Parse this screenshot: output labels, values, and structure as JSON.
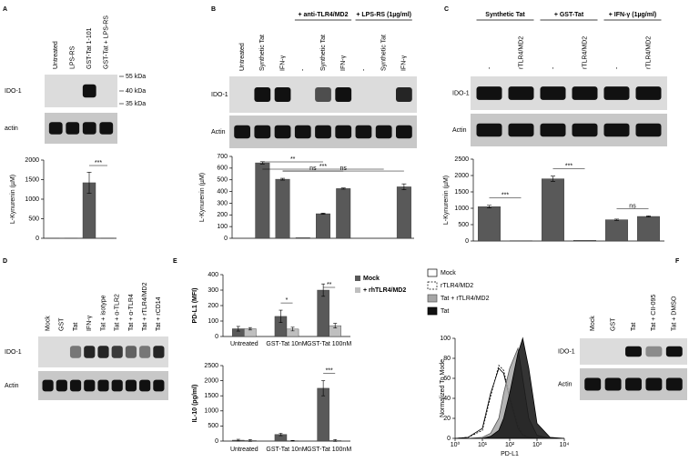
{
  "panel_labels": [
    "A",
    "B",
    "C",
    "D",
    "E",
    "F"
  ],
  "blots": [
    {
      "lanes": [
        "Untreated",
        "LPS-RS",
        "GST-Tat 1-101",
        "GST-Tat + LPS-RS"
      ],
      "rows": [
        "IDO-1",
        "actin"
      ],
      "markers": [
        "55 kDa",
        "40 kDa",
        "35 kDa"
      ]
    },
    {
      "groups": [
        "+ anti-TLR4/MD2",
        "+ LPS-RS (1µg/ml)"
      ],
      "lanes": [
        "Untreated",
        "Synthetic Tat",
        "IFN-γ",
        "-",
        "Synthetic Tat",
        "IFN-γ",
        "-",
        "Synthetic Tat",
        "IFN-γ"
      ],
      "rows": [
        "IDO-1",
        "Actin"
      ]
    },
    {
      "groups": [
        "Synthetic Tat",
        "+ GST-Tat",
        "+ IFN-γ (1µg/ml)"
      ],
      "lanes": [
        "-",
        "rTLR4/MD2",
        "-",
        "rTLR4/MD2",
        "-",
        "rTLR4/MD2"
      ],
      "rows": [
        "IDO-1",
        "Actin"
      ]
    },
    {
      "lanes": [
        "Mock",
        "GST",
        "Tat",
        "IFN-γ",
        "Tat + isotype",
        "Tat + α-TLR2",
        "Tat + α-TLR4",
        "Tat + rTLR4/MD2",
        "Tat + rCD14"
      ],
      "rows": [
        "IDO-1",
        "Actin"
      ]
    },
    {
      "lanes": [
        "Mock",
        "GST",
        "Tat",
        "Tat + CII-095",
        "Tat + DMSO"
      ],
      "rows": [
        "IDO-1",
        "Actin"
      ]
    }
  ],
  "chart_data": [
    {
      "type": "bar",
      "ylabel": "L-Kynurenin (µM)",
      "categories": [
        null,
        null,
        null,
        null
      ],
      "values": [
        5,
        5,
        1420,
        5
      ],
      "errors": [
        null,
        null,
        270,
        null
      ],
      "color": "#595959",
      "ylim": [
        0,
        2000
      ],
      "yticks": [
        0,
        500,
        1000,
        1500,
        2000
      ],
      "annotations": [
        {
          "text": "***",
          "between": [
            2,
            3
          ]
        }
      ]
    },
    {
      "type": "bar",
      "ylabel": "L-Kynurenin (µM)",
      "categories": [
        null,
        null,
        null,
        null,
        null,
        null,
        null,
        null,
        null
      ],
      "values": [
        0,
        645,
        505,
        5,
        210,
        425,
        0,
        0,
        440
      ],
      "errors": [
        null,
        10,
        8,
        null,
        5,
        5,
        null,
        null,
        25
      ],
      "color": "#595959",
      "ylim": [
        0,
        700
      ],
      "yticks": [
        0,
        100,
        200,
        300,
        400,
        500,
        600,
        700
      ],
      "annotations": [
        {
          "text": "**",
          "between": [
            1,
            4
          ]
        },
        {
          "text": "***",
          "between": [
            1,
            7
          ]
        },
        {
          "text": "ns",
          "between": [
            2,
            5
          ]
        },
        {
          "text": "ns",
          "between": [
            2,
            8
          ]
        }
      ]
    },
    {
      "type": "bar",
      "ylabel": "L-Kynurenin (µM)",
      "categories": [
        null,
        null,
        null,
        null,
        null,
        null
      ],
      "values": [
        1050,
        10,
        1900,
        20,
        650,
        750
      ],
      "errors": [
        40,
        null,
        80,
        null,
        20,
        15
      ],
      "color": "#595959",
      "ylim": [
        0,
        2500
      ],
      "yticks": [
        0,
        500,
        1000,
        1500,
        2000,
        2500
      ],
      "annotations": [
        {
          "text": "***",
          "between": [
            0,
            1
          ]
        },
        {
          "text": "***",
          "between": [
            2,
            3
          ]
        },
        {
          "text": "ns",
          "between": [
            4,
            5
          ]
        }
      ]
    },
    {
      "type": "grouped_bar",
      "ylabel": "PD-L1 (MFI)",
      "categories": [
        "Untreated",
        "GST-Tat 10nM",
        "GST-Tat 100nM"
      ],
      "series": [
        {
          "name": "Mock",
          "color": "#595959",
          "values": [
            50,
            130,
            300
          ],
          "errors": [
            15,
            40,
            40
          ]
        },
        {
          "name": "+ rhTLR4/MD2",
          "color": "#bfbfbf",
          "values": [
            50,
            48,
            70
          ],
          "errors": [
            8,
            12,
            15
          ]
        }
      ],
      "ylim": [
        0,
        400
      ],
      "yticks": [
        0,
        100,
        200,
        300,
        400
      ],
      "annotations": [
        {
          "text": "*",
          "category": 1
        },
        {
          "text": "**",
          "category": 2
        }
      ]
    },
    {
      "type": "grouped_bar",
      "ylabel": "IL-10 (pg/ml)",
      "categories": [
        "Untreated",
        "GST-Tat 10nM",
        "GST-Tat 100nM"
      ],
      "series": [
        {
          "color": "#595959",
          "values": [
            30,
            220,
            1750
          ],
          "errors": [
            30,
            40,
            250
          ]
        },
        {
          "color": "#bfbfbf",
          "values": [
            20,
            10,
            20
          ],
          "errors": [
            30,
            10,
            30
          ]
        }
      ],
      "ylim": [
        0,
        2500
      ],
      "yticks": [
        0,
        500,
        1000,
        1500,
        2000,
        2500
      ],
      "annotations": [
        {
          "text": "***",
          "category": 2
        }
      ]
    },
    {
      "type": "line",
      "xlabel": "PD-L1",
      "ylabel": "Normalized To Mode",
      "log_x": true,
      "x": [
        1,
        3,
        10,
        20,
        40,
        60,
        100,
        200,
        300,
        500,
        1000,
        3000,
        10000
      ],
      "series": [
        {
          "name": "Mock",
          "color": "#000000",
          "fill": "none",
          "dashed": false,
          "values": [
            0,
            1,
            10,
            45,
            70,
            65,
            40,
            10,
            3,
            1,
            0,
            0,
            0
          ]
        },
        {
          "name": "rTLR4/MD2",
          "color": "#000000",
          "fill": "none",
          "dashed": true,
          "values": [
            0,
            1,
            8,
            42,
            73,
            68,
            42,
            12,
            4,
            1,
            0,
            0,
            0
          ]
        },
        {
          "name": "Tat + rTLR4/MD2",
          "color": "#555555",
          "fill": "#a6a6a6",
          "dashed": false,
          "values": [
            0,
            0,
            1,
            5,
            20,
            45,
            70,
            90,
            60,
            20,
            3,
            0,
            0
          ]
        },
        {
          "name": "Tat",
          "color": "#000000",
          "fill": "#111111",
          "dashed": false,
          "values": [
            0,
            0,
            0,
            2,
            8,
            20,
            45,
            85,
            100,
            70,
            15,
            1,
            0
          ]
        }
      ],
      "xlim": [
        1,
        10000
      ],
      "xticks": [
        {
          "value": 1,
          "label": "10⁰"
        },
        {
          "value": 10,
          "label": "10¹"
        },
        {
          "value": 100,
          "label": "10²"
        },
        {
          "value": 1000,
          "label": "10³"
        },
        {
          "value": 10000,
          "label": "10⁴"
        }
      ],
      "ylim": [
        0,
        100
      ],
      "yticks": [
        0,
        20,
        40,
        60,
        80,
        100
      ]
    }
  ]
}
